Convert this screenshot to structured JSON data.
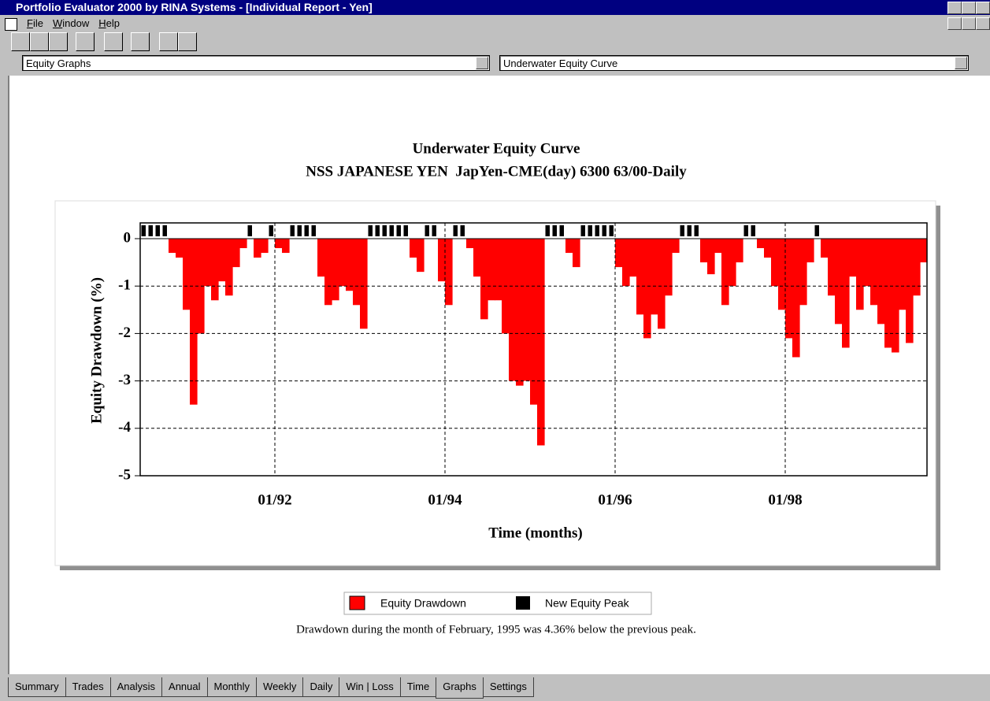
{
  "window": {
    "title": "Portfolio Evaluator 2000 by RINA Systems - [Individual Report - Yen]",
    "menu": [
      "File",
      "Window",
      "Help"
    ]
  },
  "selectors": [
    "Equity Graphs",
    "Underwater Equity Curve"
  ],
  "chart_data": {
    "type": "area",
    "title": "Underwater Equity Curve",
    "subtitle": "NSS JAPANESE YEN  JapYen-CME(day) 6300 63/00-Daily",
    "y_label": "Equity Drawdown (%)",
    "x_label": "Time (months)",
    "x": [
      "06/90",
      "07/90",
      "08/90",
      "09/90",
      "10/90",
      "11/90",
      "12/90",
      "01/91",
      "02/91",
      "03/91",
      "04/91",
      "05/91",
      "06/91",
      "07/91",
      "08/91",
      "09/91",
      "10/91",
      "11/91",
      "12/91",
      "01/92",
      "02/92",
      "03/92",
      "04/92",
      "05/92",
      "06/92",
      "07/92",
      "08/92",
      "09/92",
      "10/92",
      "11/92",
      "12/92",
      "01/93",
      "02/93",
      "03/93",
      "04/93",
      "05/93",
      "06/93",
      "07/93",
      "08/93",
      "09/93",
      "10/93",
      "11/93",
      "12/93",
      "01/94",
      "02/94",
      "03/94",
      "04/94",
      "05/94",
      "06/94",
      "07/94",
      "08/94",
      "09/94",
      "10/94",
      "11/94",
      "12/94",
      "01/95",
      "02/95",
      "03/95",
      "04/95",
      "05/95",
      "06/95",
      "07/95",
      "08/95",
      "09/95",
      "10/95",
      "11/95",
      "12/95",
      "01/96",
      "02/96",
      "03/96",
      "04/96",
      "05/96",
      "06/96",
      "07/96",
      "08/96",
      "09/96",
      "10/96",
      "11/96",
      "12/96",
      "01/97",
      "02/97",
      "03/97",
      "04/97",
      "05/97",
      "06/97",
      "07/97",
      "08/97",
      "09/97",
      "10/97",
      "11/97",
      "12/97",
      "01/98",
      "02/98",
      "03/98",
      "04/98",
      "05/98",
      "06/98",
      "07/98",
      "08/98",
      "09/98",
      "10/98",
      "11/98",
      "12/98",
      "01/99",
      "02/99",
      "03/99",
      "04/99",
      "05/99",
      "06/99",
      "07/99",
      "08/99"
    ],
    "series": [
      {
        "name": "Equity Drawdown",
        "color": "#ff0000",
        "values": [
          0,
          0,
          0,
          0,
          -0.3,
          -0.4,
          -1.5,
          -3.5,
          -2.0,
          -1.0,
          -1.3,
          -0.9,
          -1.2,
          -0.6,
          -0.2,
          0,
          -0.4,
          -0.3,
          0,
          -0.2,
          -0.3,
          0,
          0,
          0,
          0,
          -0.8,
          -1.4,
          -1.3,
          -1.0,
          -1.1,
          -1.4,
          -1.9,
          0,
          0,
          0,
          0,
          0,
          0,
          -0.4,
          -0.7,
          0,
          0,
          -0.9,
          -1.4,
          0,
          0,
          -0.2,
          -0.8,
          -1.7,
          -1.3,
          -1.3,
          -2.0,
          -3.0,
          -3.1,
          -3.0,
          -3.5,
          -4.36,
          0,
          0,
          0,
          -0.3,
          -0.6,
          0,
          0,
          0,
          0,
          0,
          -0.6,
          -1.0,
          -0.8,
          -1.6,
          -2.1,
          -1.6,
          -1.9,
          -1.2,
          -0.3,
          0,
          0,
          0,
          -0.5,
          -0.75,
          -0.3,
          -1.4,
          -1.0,
          -0.5,
          0,
          0,
          -0.2,
          -0.4,
          -1.0,
          -1.5,
          -2.1,
          -2.5,
          -1.4,
          -0.5,
          0,
          -0.4,
          -1.2,
          -1.8,
          -2.3,
          -0.8,
          -1.5,
          -1.0,
          -1.4,
          -1.8,
          -2.3,
          -2.4,
          -1.5,
          -2.2,
          -1.2,
          -0.5
        ]
      }
    ],
    "peak_marker": {
      "name": "New Equity Peak",
      "color": "#000000"
    },
    "xticks": [
      "01/92",
      "01/94",
      "01/96",
      "01/98"
    ],
    "ylim": [
      -5,
      0
    ],
    "yticks": [
      0,
      -1,
      -2,
      -3,
      -4,
      -5
    ],
    "grid": true
  },
  "note": "Drawdown during the month of February, 1995 was 4.36% below the previous peak.",
  "tabs": [
    "Summary",
    "Trades",
    "Analysis",
    "Annual",
    "Monthly",
    "Weekly",
    "Daily",
    "Win | Loss",
    "Time",
    "Graphs",
    "Settings"
  ],
  "active_tab": 9
}
